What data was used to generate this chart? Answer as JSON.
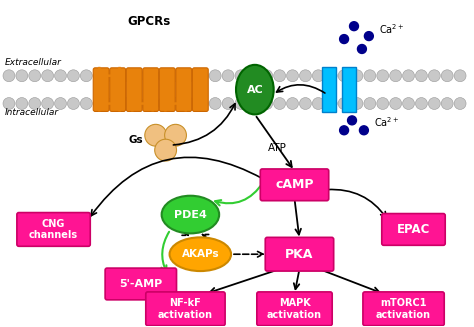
{
  "bg_color": "#ffffff",
  "pink_box_color": "#FF1493",
  "pink_box_edge": "#CC0066",
  "extracellular_label": "Extracellular",
  "intracellular_label": "Intracellular",
  "gpcr_label": "GPCRs",
  "gs_label": "Gs",
  "ac_label": "AC",
  "atp_label": "ATP",
  "camp_label": "cAMP",
  "cng_label": "CNG\nchannels",
  "pde4_label": "PDE4",
  "akaps_label": "AKAPs",
  "pka_label": "PKA",
  "epac_label": "EPAC",
  "amp_label": "5'-AMP",
  "nfkb_label": "NF-kF\nactivation",
  "mapk_label": "MAPK\nactivation",
  "mtorc_label": "mTORC1\nactivation",
  "gpcr_color": "#E8820C",
  "gpcr_edge": "#CC6600",
  "gs_color": "#F0C080",
  "gs_edge": "#C8902A",
  "ac_color": "#228B22",
  "ac_edge": "#006400",
  "channel_color": "#00BFFF",
  "channel_edge": "#0080CC",
  "ca_dot_color": "#00008B",
  "pde4_color": "#32CD32",
  "pde4_edge": "#228B22",
  "akap_color": "#FFA500",
  "akap_edge": "#CC8800",
  "mem_color": "#c8c8c8",
  "mem_edge": "#999999"
}
